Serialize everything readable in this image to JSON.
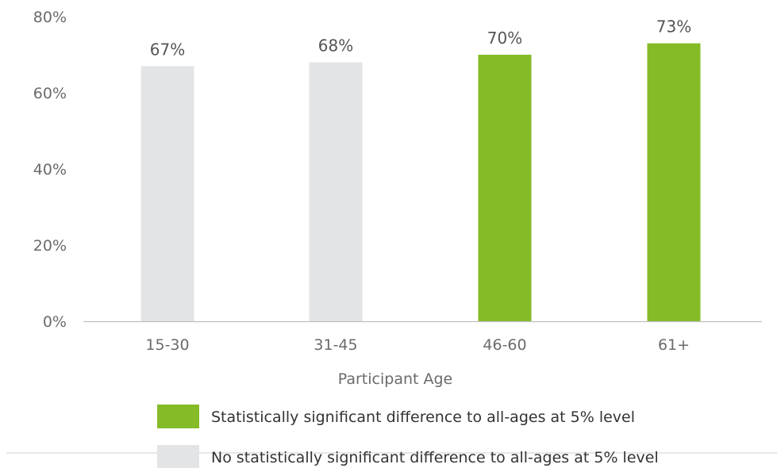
{
  "chart_data": {
    "type": "bar",
    "categories": [
      "15-30",
      "31-45",
      "46-60",
      "61+"
    ],
    "values": [
      67,
      68,
      70,
      73
    ],
    "data_labels": [
      "67%",
      "68%",
      "70%",
      "73%"
    ],
    "bar_groups": [
      "not_significant",
      "not_significant",
      "significant",
      "significant"
    ],
    "title": "",
    "xlabel": "Participant Age",
    "ylabel": "",
    "ylim": [
      0,
      80
    ],
    "yticks": [
      0,
      20,
      40,
      60,
      80
    ],
    "ytick_labels": [
      "0%",
      "20%",
      "40%",
      "60%",
      "80%"
    ],
    "grid": false,
    "legend_position": "bottom",
    "legend": [
      {
        "key": "significant",
        "label": "Statistically significant difference to all-ages at 5% level",
        "color": "#85bb27"
      },
      {
        "key": "not_significant",
        "label": "No statistically significant difference to all-ages at 5% level",
        "color": "#e3e4e6"
      }
    ]
  },
  "colors": {
    "significant": "#85bb27",
    "not_significant": "#e3e4e6",
    "axis_line": "#bfbfbf"
  }
}
